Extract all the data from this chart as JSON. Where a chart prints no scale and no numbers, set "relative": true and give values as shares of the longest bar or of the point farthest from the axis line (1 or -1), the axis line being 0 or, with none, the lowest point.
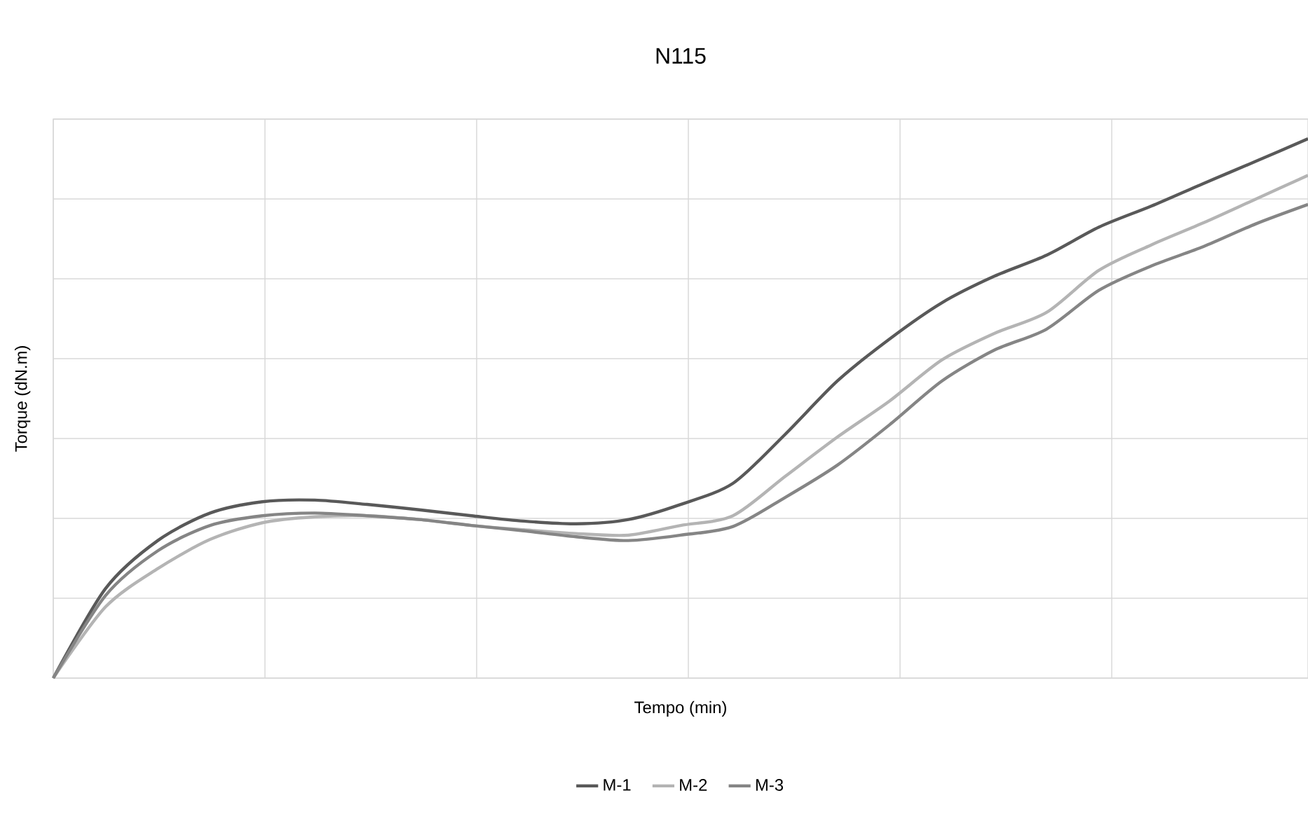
{
  "chart_data": {
    "type": "line",
    "title": "N115",
    "xlabel": "Tempo (min)",
    "ylabel": "Torque (dN.m)",
    "relative": true,
    "grid": true,
    "legend": "bottom",
    "marker": "none",
    "line_style": "solid",
    "categories": [
      null,
      null,
      null,
      null,
      null,
      null,
      null,
      null,
      null,
      null,
      null,
      null,
      null,
      null,
      null,
      null,
      null,
      null,
      null,
      null,
      null,
      null,
      null,
      null,
      null
    ],
    "series": [
      {
        "name": "M-1",
        "color": "#595959",
        "values": [
          0,
          0.166,
          0.255,
          0.306,
          0.327,
          0.33,
          0.322,
          0.312,
          0.301,
          0.291,
          0.286,
          0.294,
          0.322,
          0.361,
          0.452,
          0.551,
          0.629,
          0.696,
          0.745,
          0.784,
          0.836,
          0.875,
          0.917,
          0.958,
          1
        ]
      },
      {
        "name": "M-2",
        "color": "#b4b4b4",
        "values": [
          0,
          0.132,
          0.203,
          0.257,
          0.288,
          0.299,
          0.301,
          0.294,
          0.283,
          0.275,
          0.268,
          0.265,
          0.283,
          0.301,
          0.374,
          0.447,
          0.514,
          0.59,
          0.639,
          0.678,
          0.756,
          0.803,
          0.844,
          0.888,
          0.932
        ]
      },
      {
        "name": "M-3",
        "color": "#858585",
        "values": [
          0,
          0.153,
          0.236,
          0.283,
          0.301,
          0.306,
          0.301,
          0.294,
          0.283,
          0.273,
          0.262,
          0.255,
          0.265,
          0.281,
          0.335,
          0.395,
          0.47,
          0.551,
          0.608,
          0.647,
          0.719,
          0.764,
          0.8,
          0.842,
          0.878
        ]
      }
    ]
  }
}
